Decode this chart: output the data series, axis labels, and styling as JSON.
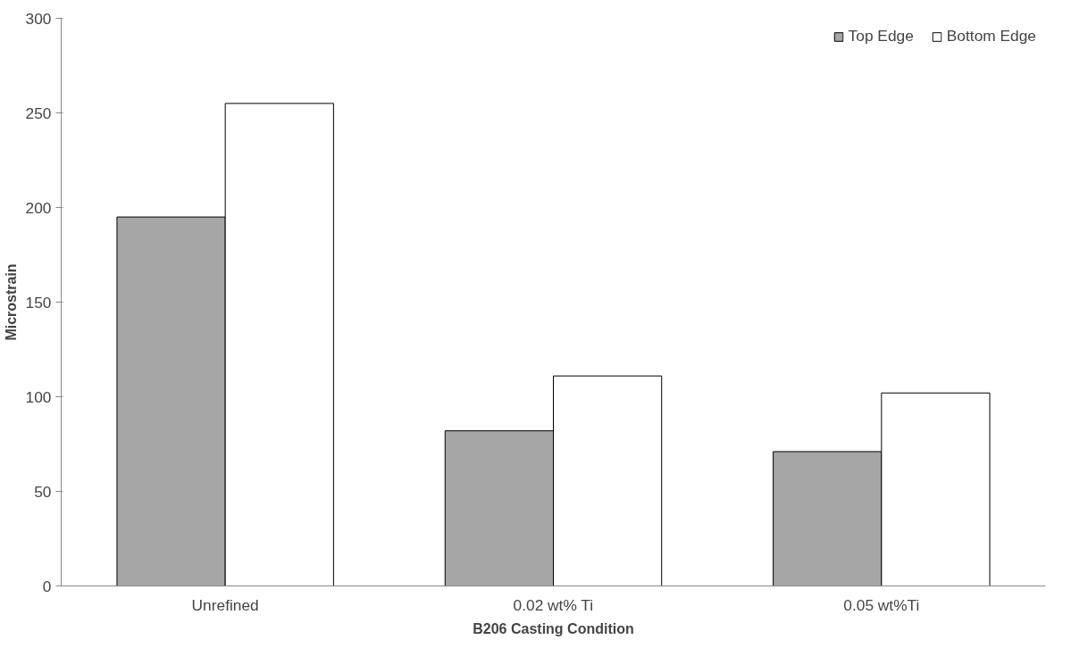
{
  "chart_data": {
    "type": "bar",
    "xlabel": "B206 Casting Condition",
    "ylabel": "Microstrain",
    "categories": [
      "Unrefined",
      "0.02 wt% Ti",
      "0.05 wt%Ti"
    ],
    "series": [
      {
        "name": "Top Edge",
        "color": "#a6a6a6",
        "values": [
          195,
          82,
          71
        ]
      },
      {
        "name": "Bottom Edge",
        "color": "#ffffff",
        "values": [
          255,
          111,
          102
        ]
      }
    ],
    "ylim": [
      0,
      300
    ],
    "yticks": [
      0,
      50,
      100,
      150,
      200,
      250,
      300
    ],
    "grid": false,
    "legend": "top right"
  }
}
